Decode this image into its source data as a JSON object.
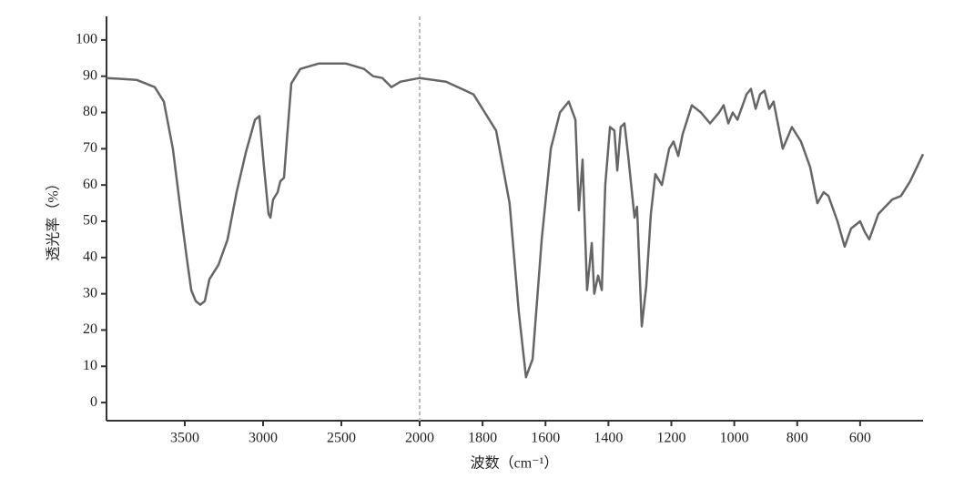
{
  "chart_data": {
    "type": "line",
    "x_label": "波数（cm⁻¹）",
    "y_label": "透光率（%）",
    "xlim": [
      4000,
      400
    ],
    "x_break": 2000,
    "ylim": [
      -5,
      106.5
    ],
    "xticks": [
      3500,
      3000,
      2500,
      2000,
      1800,
      1600,
      1400,
      1200,
      1000,
      800,
      600
    ],
    "yticks": [
      0,
      10,
      20,
      30,
      40,
      50,
      60,
      70,
      80,
      90,
      100
    ],
    "series": [
      {
        "color": "#666666",
        "x": [
          4000,
          3808,
          3692,
          3634,
          3576,
          3518,
          3488,
          3459,
          3430,
          3401,
          3372,
          3343,
          3285,
          3227,
          3169,
          3110,
          3052,
          3023,
          2994,
          2965,
          2953,
          2936,
          2907,
          2890,
          2866,
          2849,
          2820,
          2762,
          2645,
          2471,
          2355,
          2297,
          2238,
          2180,
          2122,
          2000,
          1916,
          1829,
          1757,
          1714,
          1685,
          1662,
          1641,
          1612,
          1583,
          1554,
          1526,
          1505,
          1494,
          1482,
          1468,
          1453,
          1445,
          1433,
          1421,
          1410,
          1395,
          1381,
          1372,
          1361,
          1349,
          1337,
          1317,
          1309,
          1294,
          1280,
          1265,
          1251,
          1230,
          1207,
          1193,
          1178,
          1164,
          1135,
          1106,
          1077,
          1048,
          1034,
          1019,
          1005,
          990,
          961,
          947,
          932,
          918,
          904,
          889,
          875,
          846,
          831,
          817,
          788,
          759,
          736,
          716,
          701,
          672,
          649,
          629,
          600,
          585,
          571,
          542,
          498,
          470,
          441,
          400
        ],
        "values": [
          89.5,
          89,
          87,
          83,
          70,
          50,
          40,
          31,
          28,
          27,
          28,
          34,
          38,
          45,
          58,
          69,
          78,
          79,
          65,
          52,
          51,
          56,
          58,
          61,
          62,
          72,
          88,
          92,
          93.5,
          93.5,
          92,
          90,
          89.5,
          87,
          88.5,
          89.5,
          88.5,
          85,
          75,
          55,
          25,
          7,
          12,
          45,
          70,
          80,
          83,
          78,
          53,
          67,
          31,
          44,
          30,
          35,
          31,
          60,
          76,
          75,
          64,
          76,
          77,
          68,
          51,
          54,
          21,
          32,
          52,
          63,
          60,
          70,
          72,
          68,
          74,
          82,
          80,
          77,
          80,
          82,
          77,
          80,
          78,
          85,
          86.5,
          81,
          85,
          86,
          81,
          83,
          70,
          73,
          76,
          72,
          65,
          55,
          58,
          57,
          50,
          43,
          48,
          50,
          47,
          45,
          52,
          56,
          57,
          61,
          68.5
        ]
      }
    ]
  }
}
